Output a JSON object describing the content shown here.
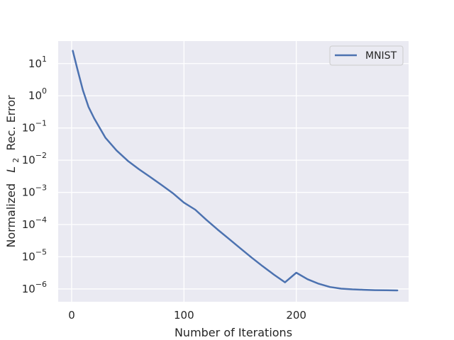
{
  "chart_data": {
    "type": "line",
    "xlabel": "Number of Iterations",
    "ylabel_prefix": "Normalized",
    "ylabel_var": "L",
    "ylabel_sub": "2",
    "ylabel_suffix": "Rec. Error",
    "yscale": "log",
    "xlim": [
      -12,
      300
    ],
    "ylim": [
      4e-07,
      50
    ],
    "grid": true,
    "legend_position": "top-right",
    "x_ticks": [
      0,
      100,
      200
    ],
    "x_tick_labels": [
      "0",
      "100",
      "200"
    ],
    "y_tick_exponents": [
      1,
      0,
      -1,
      -2,
      -3,
      -4,
      -5,
      -6
    ],
    "y_tick_base": "10",
    "series": [
      {
        "name": "MNIST",
        "color": "#4c72b0",
        "x": [
          1,
          5,
          10,
          15,
          20,
          30,
          40,
          50,
          60,
          70,
          80,
          90,
          100,
          110,
          120,
          130,
          140,
          150,
          160,
          170,
          180,
          190,
          200,
          210,
          220,
          230,
          240,
          250,
          260,
          270,
          280,
          290
        ],
        "y": [
          25,
          7,
          1.5,
          0.45,
          0.2,
          0.05,
          0.02,
          0.0095,
          0.0052,
          0.003,
          0.0017,
          0.00095,
          0.00048,
          0.00029,
          0.00014,
          7e-05,
          3.6e-05,
          1.85e-05,
          9.6e-06,
          5.1e-06,
          2.8e-06,
          1.6e-06,
          3.2e-06,
          2e-06,
          1.45e-06,
          1.15e-06,
          1.02e-06,
          9.7e-07,
          9.4e-07,
          9.2e-07,
          9.1e-07,
          9e-07
        ]
      }
    ]
  }
}
